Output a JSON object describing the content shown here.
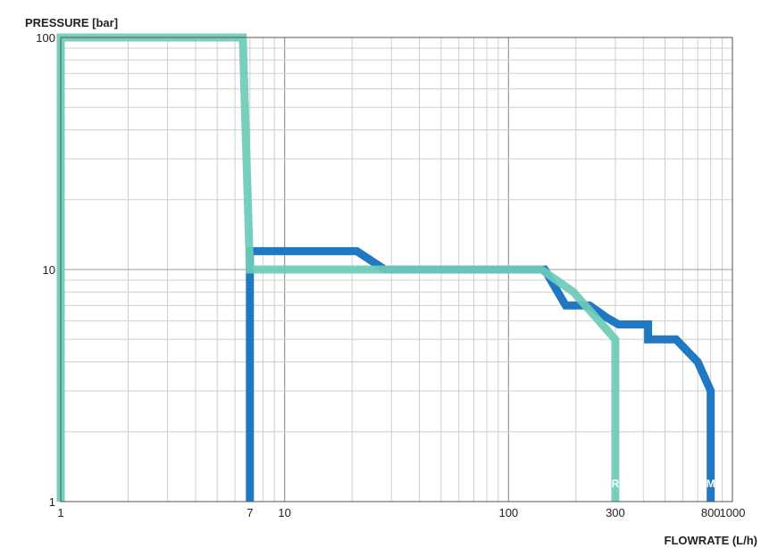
{
  "chart_data": {
    "type": "line",
    "ylabel": "PRESSURE [bar]",
    "xlabel": "FLOWRATE (L/h)",
    "x_scale": "log",
    "y_scale": "log",
    "xlim": [
      1,
      1000
    ],
    "ylim": [
      1,
      100
    ],
    "grid": true,
    "x_ticks": [
      {
        "value": 1,
        "label": "1"
      },
      {
        "value": 7,
        "label": "7"
      },
      {
        "value": 10,
        "label": "10"
      },
      {
        "value": 100,
        "label": "100"
      },
      {
        "value": 300,
        "label": "300"
      },
      {
        "value": 800,
        "label": "800"
      },
      {
        "value": 1000,
        "label": "1000"
      }
    ],
    "y_ticks": [
      {
        "value": 1,
        "label": "1"
      },
      {
        "value": 10,
        "label": "10"
      },
      {
        "value": 100,
        "label": "100"
      }
    ],
    "series": [
      {
        "name": "M",
        "color": "#1f78c1",
        "x": [
          7,
          7,
          21,
          28,
          145,
          180,
          230,
          275,
          310,
          420,
          420,
          560,
          700,
          800,
          800
        ],
        "y": [
          1,
          12,
          12,
          10,
          10,
          7,
          7,
          6.2,
          5.8,
          5.8,
          5.0,
          5.0,
          4.0,
          3.0,
          1
        ]
      },
      {
        "name": "R",
        "color": "#6dcbb8",
        "x": [
          1,
          1,
          6.5,
          7,
          140,
          195,
          300,
          300
        ],
        "y": [
          1,
          100,
          100,
          10,
          10,
          8,
          5,
          1
        ]
      }
    ]
  }
}
